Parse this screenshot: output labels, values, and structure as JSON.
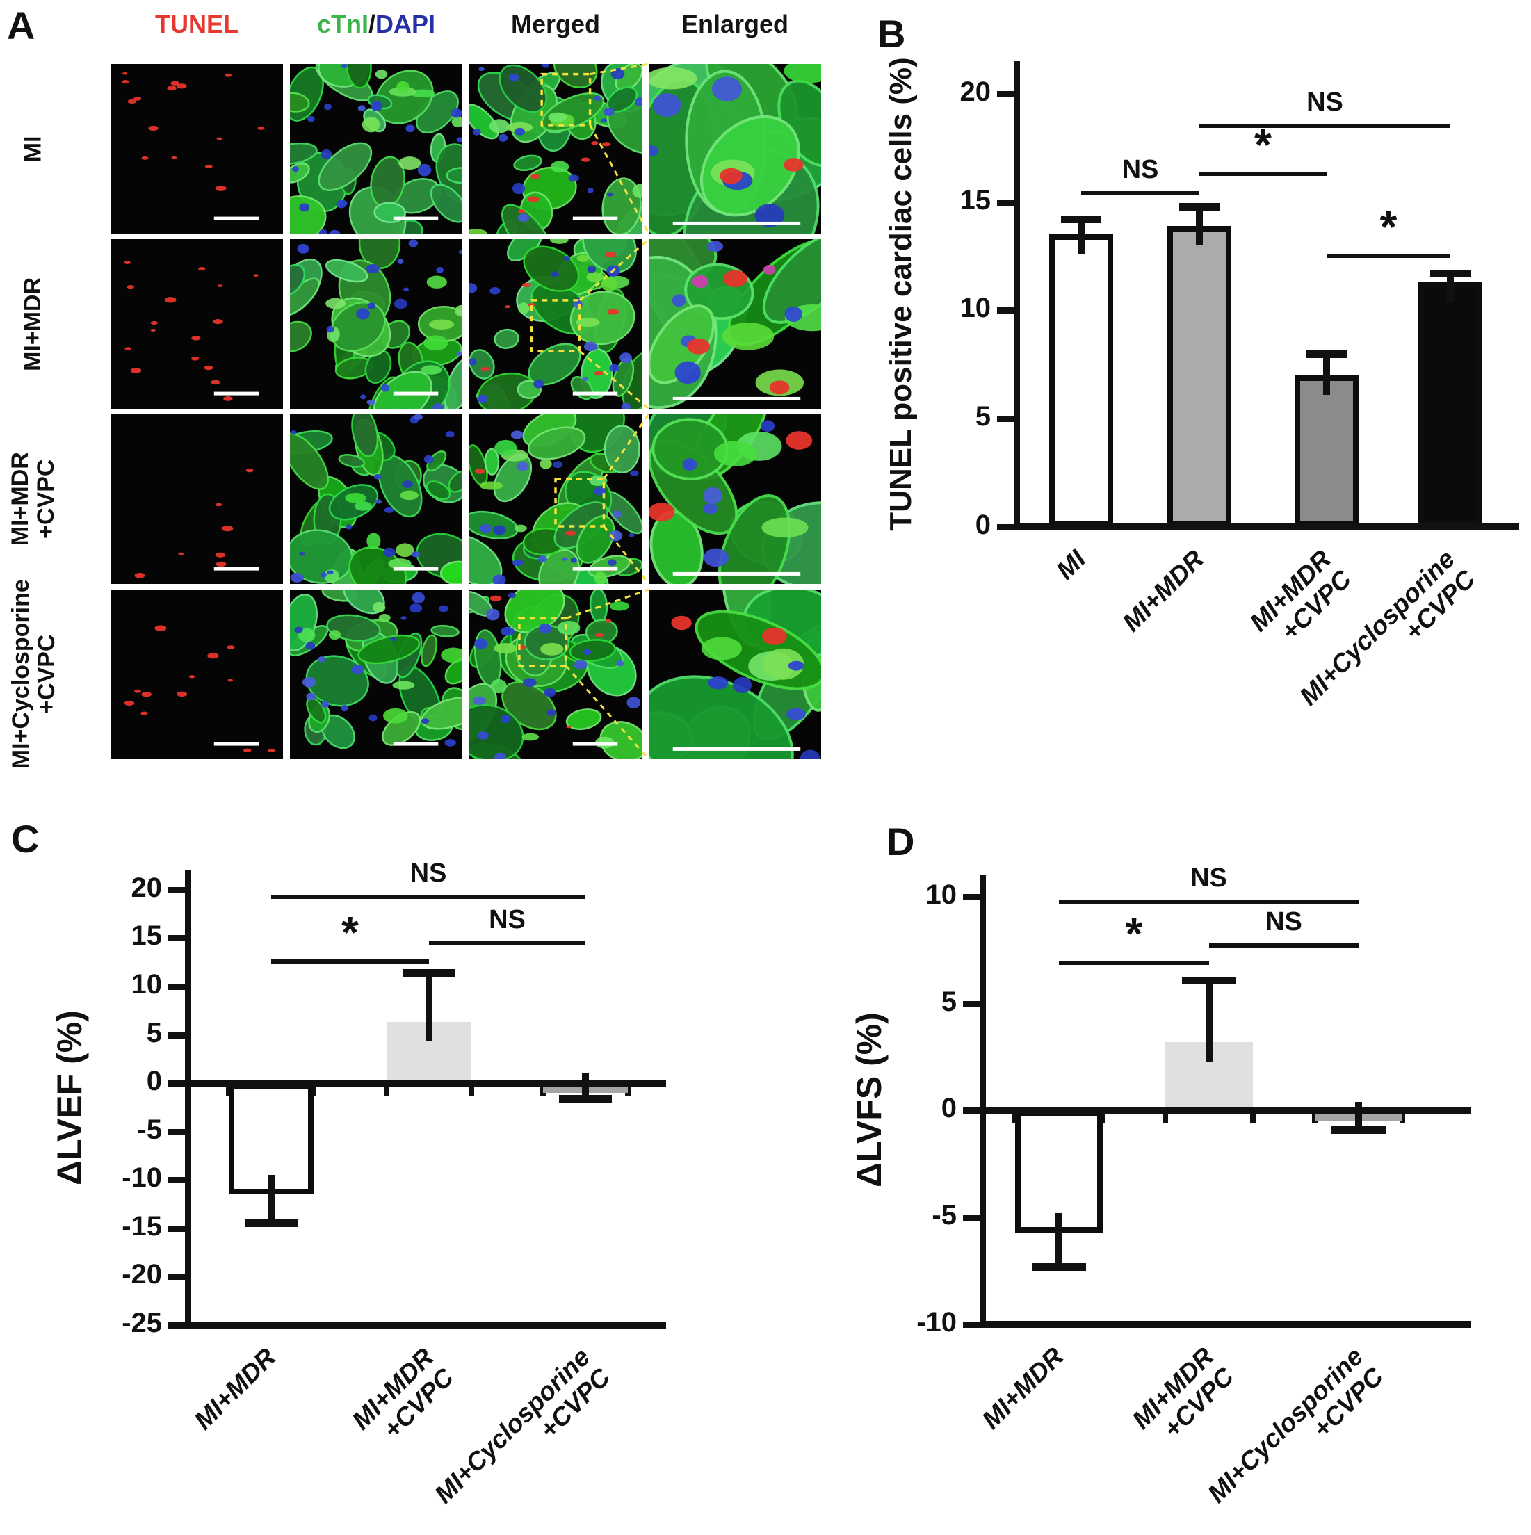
{
  "figure": {
    "panels": {
      "A": {
        "label": "A",
        "col_headers": [
          {
            "text": "TUNEL",
            "color": "#e8372f"
          },
          {
            "parts": [
              {
                "text": "cTnI",
                "color": "#3bb54a"
              },
              {
                "text": "/",
                "color": "#141414"
              },
              {
                "text": "DAPI",
                "color": "#2430a6"
              }
            ]
          },
          {
            "text": "Merged",
            "color": "#141414"
          },
          {
            "text": "Enlarged",
            "color": "#141414"
          }
        ],
        "row_labels": [
          "MI",
          "MI+MDR",
          "MI+MDR\n+CVPC",
          "MI+Cyclosporine\n+CVPC"
        ],
        "stain_colors": {
          "tunel_red": "#e6352b",
          "ctni_green": "#3bb54a",
          "dapi_blue": "#2b3ed6",
          "zoom_box_yellow": "#f3e13d",
          "scale_bar_white": "#ffffff"
        }
      },
      "B": {
        "label": "B"
      },
      "C": {
        "label": "C"
      },
      "D": {
        "label": "D"
      }
    }
  },
  "chart_data": [
    {
      "panel": "B",
      "type": "bar",
      "title": "",
      "ylabel": "TUNEL positive cardiac cells (%)",
      "xlabel": "",
      "categories": [
        "MI",
        "MI+MDR",
        "MI+MDR\n+CVPC",
        "MI+Cyclosporine\n+CVPC"
      ],
      "values": [
        13.5,
        13.9,
        7.0,
        11.3
      ],
      "errors": [
        0.7,
        0.9,
        1.0,
        0.4
      ],
      "error_direction": "away_from_zero",
      "bar_fills": [
        "#ffffff",
        "#ababab",
        "#8b8b8b",
        "#0b0b0b"
      ],
      "bar_outlined": [
        true,
        true,
        true,
        true
      ],
      "ylim": [
        0,
        21.5
      ],
      "yticks": [
        0,
        5,
        10,
        15,
        20
      ],
      "grid": false,
      "legend": "none",
      "brackets": [
        {
          "from": 0,
          "to": 1,
          "y": 15.5,
          "label": "NS"
        },
        {
          "from": 1,
          "to": 2,
          "y": 16.4,
          "label": "*"
        },
        {
          "from": 1,
          "to": 3,
          "y": 18.6,
          "label": "NS"
        },
        {
          "from": 2,
          "to": 3,
          "y": 12.6,
          "label": "*"
        }
      ]
    },
    {
      "panel": "C",
      "type": "bar",
      "title": "",
      "ylabel": "ΔLVEF (%)",
      "xlabel": "",
      "categories": [
        "MI+MDR",
        "MI+MDR\n+CVPC",
        "MI+Cyclosporine\n+CVPC"
      ],
      "values": [
        -11.5,
        6.3,
        -1.0
      ],
      "errors": [
        2.9,
        5.1,
        0.6
      ],
      "error_direction": "away_from_zero",
      "bar_fills": [
        "#ffffff",
        "#e0e0e0",
        "#a5a5a5"
      ],
      "bar_outlined": [
        true,
        false,
        false
      ],
      "ylim": [
        -25,
        22
      ],
      "yticks": [
        20,
        15,
        10,
        5,
        0,
        -5,
        -10,
        -15,
        -20,
        -25
      ],
      "grid": false,
      "legend": "none",
      "brackets": [
        {
          "from": 0,
          "to": 1,
          "y": 12.8,
          "label": "*"
        },
        {
          "from": 1,
          "to": 2,
          "y": 14.7,
          "label": "NS"
        },
        {
          "from": 0,
          "to": 2,
          "y": 19.5,
          "label": "NS"
        }
      ]
    },
    {
      "panel": "D",
      "type": "bar",
      "title": "",
      "ylabel": "ΔLVFS (%)",
      "xlabel": "",
      "categories": [
        "MI+MDR",
        "MI+MDR\n+CVPC",
        "MI+Cyclosporine\n+CVPC"
      ],
      "values": [
        -5.7,
        3.2,
        -0.5
      ],
      "errors": [
        1.6,
        2.9,
        0.4
      ],
      "error_direction": "away_from_zero",
      "bar_fills": [
        "#ffffff",
        "#e0e0e0",
        "#a5a5a5"
      ],
      "bar_outlined": [
        true,
        false,
        false
      ],
      "ylim": [
        -10,
        11
      ],
      "yticks": [
        10,
        5,
        0,
        -5,
        -10
      ],
      "grid": false,
      "legend": "none",
      "brackets": [
        {
          "from": 0,
          "to": 1,
          "y": 7.0,
          "label": "*"
        },
        {
          "from": 1,
          "to": 2,
          "y": 7.8,
          "label": "NS"
        },
        {
          "from": 0,
          "to": 2,
          "y": 9.85,
          "label": "NS"
        }
      ]
    }
  ]
}
